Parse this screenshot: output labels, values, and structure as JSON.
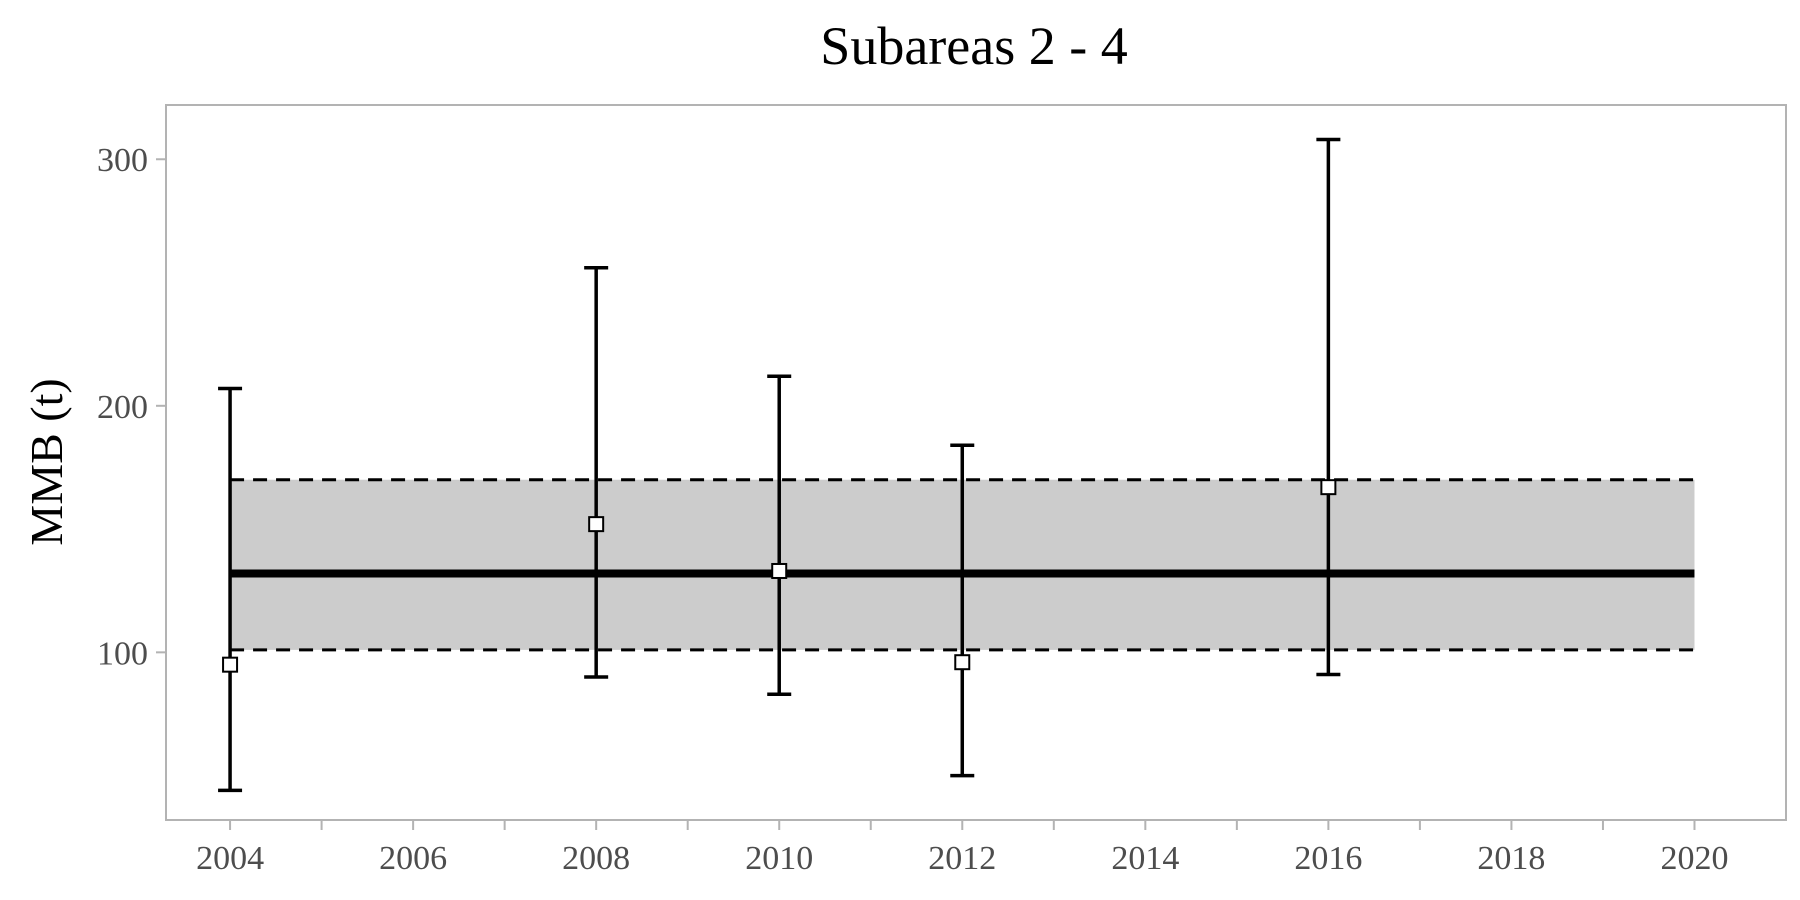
{
  "chart_data": {
    "type": "scatter",
    "title": "Subareas 2 - 4",
    "xlabel": "",
    "ylabel": "MMB (t)",
    "xlim": [
      2003.3,
      2021.0
    ],
    "ylim": [
      32,
      322
    ],
    "xticks": [
      "2004",
      "2006",
      "2008",
      "2010",
      "2012",
      "2014",
      "2016",
      "2018",
      "2020"
    ],
    "xminor_ticks": [
      2005,
      2007,
      2009,
      2011,
      2013,
      2015,
      2017,
      2019
    ],
    "yticks": [
      "100",
      "200",
      "300"
    ],
    "grid": false,
    "points": [
      {
        "x": 2004,
        "y": 95,
        "lower": 44,
        "upper": 207
      },
      {
        "x": 2008,
        "y": 152,
        "lower": 90,
        "upper": 256
      },
      {
        "x": 2010,
        "y": 133,
        "lower": 83,
        "upper": 212
      },
      {
        "x": 2012,
        "y": 96,
        "lower": 50,
        "upper": 184
      },
      {
        "x": 2016,
        "y": 167,
        "lower": 91,
        "upper": 308
      }
    ],
    "band": {
      "x_start": 2004,
      "x_end": 2020,
      "lower": 101,
      "upper": 170,
      "mean": 132
    },
    "colors": {
      "band_fill": "#cccccc",
      "line": "#000000",
      "marker_fill": "#ffffff",
      "frame": "#b3b3b3",
      "tick_text": "#4d4d4d"
    }
  }
}
